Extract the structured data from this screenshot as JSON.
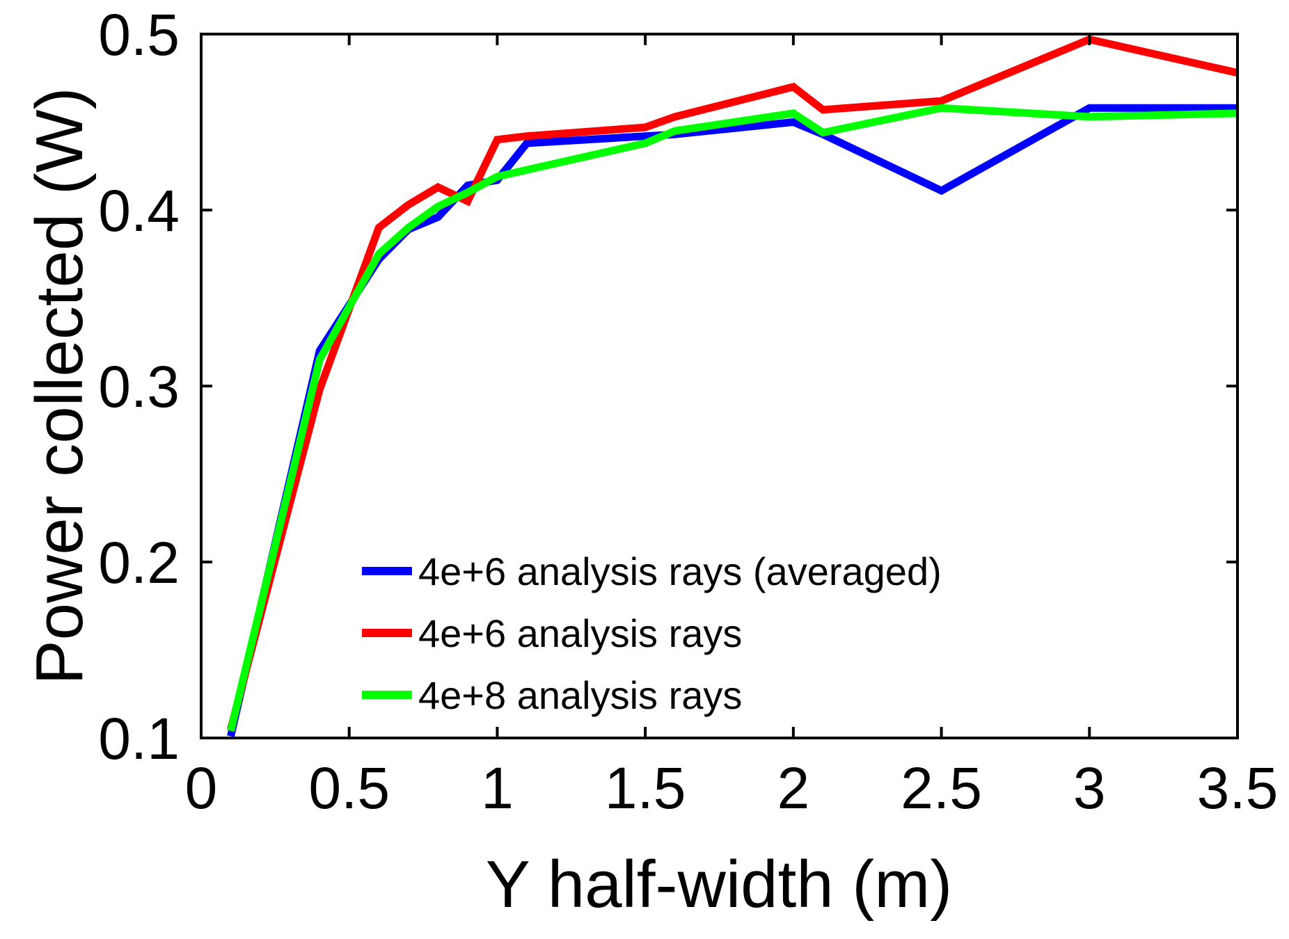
{
  "chart_data": {
    "type": "line",
    "title": "",
    "xlabel": "Y half-width (m)",
    "ylabel": "Power collected (W)",
    "xlim": [
      0,
      3.5
    ],
    "ylim": [
      0.1,
      0.5
    ],
    "xticks": [
      0,
      0.5,
      1,
      1.5,
      2,
      2.5,
      3,
      3.5
    ],
    "xtick_labels": [
      "0",
      "0.5",
      "1",
      "1.5",
      "2",
      "2.5",
      "3",
      "3.5"
    ],
    "yticks": [
      0.1,
      0.2,
      0.3,
      0.4,
      0.5
    ],
    "ytick_labels": [
      "0.1",
      "0.2",
      "0.3",
      "0.4",
      "0.5"
    ],
    "grid": false,
    "legend_position": "bottom-center",
    "series": [
      {
        "name": "4e+6 analysis rays (averaged)",
        "color": "#0000ff",
        "x": [
          0.1,
          0.4,
          0.6,
          0.7,
          0.8,
          0.9,
          1.0,
          1.1,
          1.6,
          2.0,
          2.1,
          2.5,
          3.0,
          3.5
        ],
        "y": [
          0.101,
          0.32,
          0.372,
          0.389,
          0.396,
          0.414,
          0.417,
          0.438,
          0.443,
          0.45,
          0.443,
          0.411,
          0.458,
          0.458
        ]
      },
      {
        "name": "4e+6 analysis rays",
        "color": "#ff0000",
        "x": [
          0.1,
          0.4,
          0.6,
          0.7,
          0.8,
          0.9,
          1.0,
          1.1,
          1.5,
          1.6,
          2.0,
          2.1,
          2.5,
          3.0,
          3.5
        ],
        "y": [
          0.105,
          0.298,
          0.39,
          0.403,
          0.413,
          0.405,
          0.44,
          0.442,
          0.447,
          0.453,
          0.47,
          0.457,
          0.462,
          0.497,
          0.478
        ]
      },
      {
        "name": "4e+8 analysis rays",
        "color": "#00ff00",
        "x": [
          0.1,
          0.4,
          0.6,
          0.7,
          0.8,
          0.9,
          1.0,
          1.5,
          1.6,
          2.0,
          2.1,
          2.5,
          3.0,
          3.5
        ],
        "y": [
          0.104,
          0.315,
          0.375,
          0.39,
          0.402,
          0.41,
          0.419,
          0.438,
          0.445,
          0.455,
          0.444,
          0.458,
          0.453,
          0.455
        ]
      }
    ]
  }
}
